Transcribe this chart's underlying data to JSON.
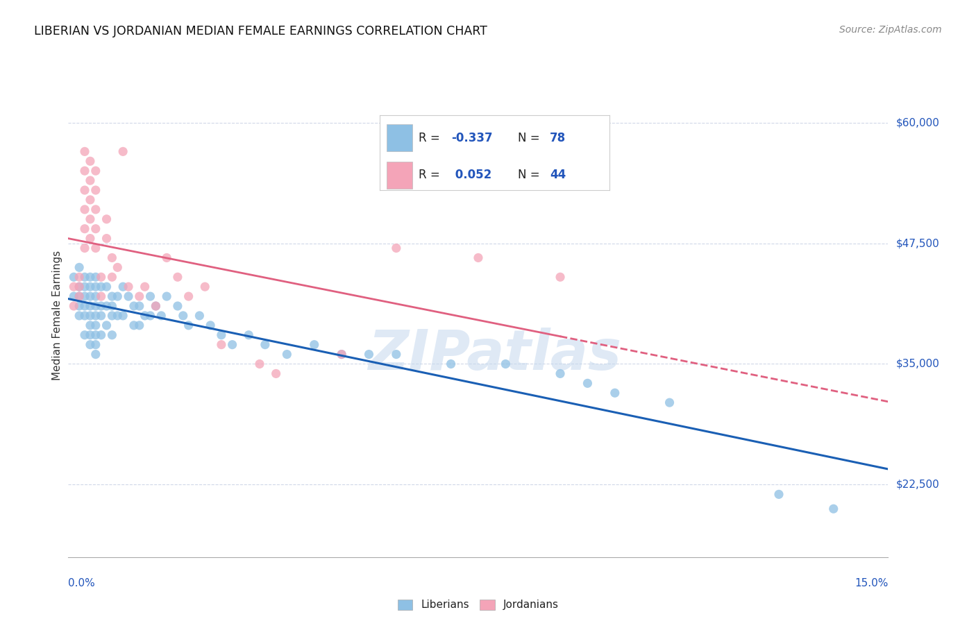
{
  "title": "LIBERIAN VS JORDANIAN MEDIAN FEMALE EARNINGS CORRELATION CHART",
  "source": "Source: ZipAtlas.com",
  "ylabel": "Median Female Earnings",
  "color_liberian": "#8ec0e4",
  "color_jordanian": "#f4a4b8",
  "color_liberian_line": "#1a5fb4",
  "color_jordanian_line": "#e06080",
  "color_blue_text": "#2255bb",
  "watermark_text": "ZIPatlas",
  "background": "#ffffff",
  "grid_color": "#d0d8e8",
  "xmin": 0.0,
  "xmax": 0.15,
  "ymin": 15000,
  "ymax": 65000,
  "ytick_positions": [
    22500,
    35000,
    47500,
    60000
  ],
  "ytick_labels": [
    "$22,500",
    "$35,000",
    "$47,500",
    "$60,000"
  ],
  "legend_items": [
    {
      "label": "R = -0.337   N = 78",
      "color": "#8ec0e4"
    },
    {
      "label": "R =  0.052   N = 44",
      "color": "#f4a4b8"
    }
  ],
  "liberian_x": [
    0.001,
    0.001,
    0.002,
    0.002,
    0.002,
    0.002,
    0.002,
    0.003,
    0.003,
    0.003,
    0.003,
    0.003,
    0.003,
    0.004,
    0.004,
    0.004,
    0.004,
    0.004,
    0.004,
    0.004,
    0.004,
    0.005,
    0.005,
    0.005,
    0.005,
    0.005,
    0.005,
    0.005,
    0.005,
    0.005,
    0.006,
    0.006,
    0.006,
    0.006,
    0.007,
    0.007,
    0.007,
    0.008,
    0.008,
    0.008,
    0.008,
    0.009,
    0.009,
    0.01,
    0.01,
    0.011,
    0.012,
    0.012,
    0.013,
    0.013,
    0.014,
    0.015,
    0.015,
    0.016,
    0.017,
    0.018,
    0.02,
    0.021,
    0.022,
    0.024,
    0.026,
    0.028,
    0.03,
    0.033,
    0.036,
    0.04,
    0.045,
    0.05,
    0.055,
    0.06,
    0.07,
    0.08,
    0.09,
    0.095,
    0.1,
    0.11,
    0.13,
    0.14
  ],
  "liberian_y": [
    44000,
    42000,
    45000,
    43000,
    42000,
    41000,
    40000,
    44000,
    43000,
    42000,
    41000,
    40000,
    38000,
    44000,
    43000,
    42000,
    41000,
    40000,
    39000,
    38000,
    37000,
    44000,
    43000,
    42000,
    41000,
    40000,
    39000,
    38000,
    37000,
    36000,
    43000,
    41000,
    40000,
    38000,
    43000,
    41000,
    39000,
    42000,
    41000,
    40000,
    38000,
    42000,
    40000,
    43000,
    40000,
    42000,
    41000,
    39000,
    41000,
    39000,
    40000,
    42000,
    40000,
    41000,
    40000,
    42000,
    41000,
    40000,
    39000,
    40000,
    39000,
    38000,
    37000,
    38000,
    37000,
    36000,
    37000,
    36000,
    36000,
    36000,
    35000,
    35000,
    34000,
    33000,
    32000,
    31000,
    21500,
    20000
  ],
  "jordanian_x": [
    0.001,
    0.001,
    0.002,
    0.002,
    0.002,
    0.003,
    0.003,
    0.003,
    0.003,
    0.003,
    0.003,
    0.004,
    0.004,
    0.004,
    0.004,
    0.004,
    0.005,
    0.005,
    0.005,
    0.005,
    0.005,
    0.006,
    0.006,
    0.007,
    0.007,
    0.008,
    0.008,
    0.009,
    0.01,
    0.011,
    0.013,
    0.014,
    0.016,
    0.018,
    0.02,
    0.022,
    0.025,
    0.028,
    0.035,
    0.038,
    0.05,
    0.06,
    0.075,
    0.09
  ],
  "jordanian_y": [
    43000,
    41000,
    44000,
    43000,
    42000,
    57000,
    55000,
    53000,
    51000,
    49000,
    47000,
    56000,
    54000,
    52000,
    50000,
    48000,
    55000,
    53000,
    51000,
    49000,
    47000,
    44000,
    42000,
    50000,
    48000,
    46000,
    44000,
    45000,
    57000,
    43000,
    42000,
    43000,
    41000,
    46000,
    44000,
    42000,
    43000,
    37000,
    35000,
    34000,
    36000,
    47000,
    46000,
    44000
  ]
}
